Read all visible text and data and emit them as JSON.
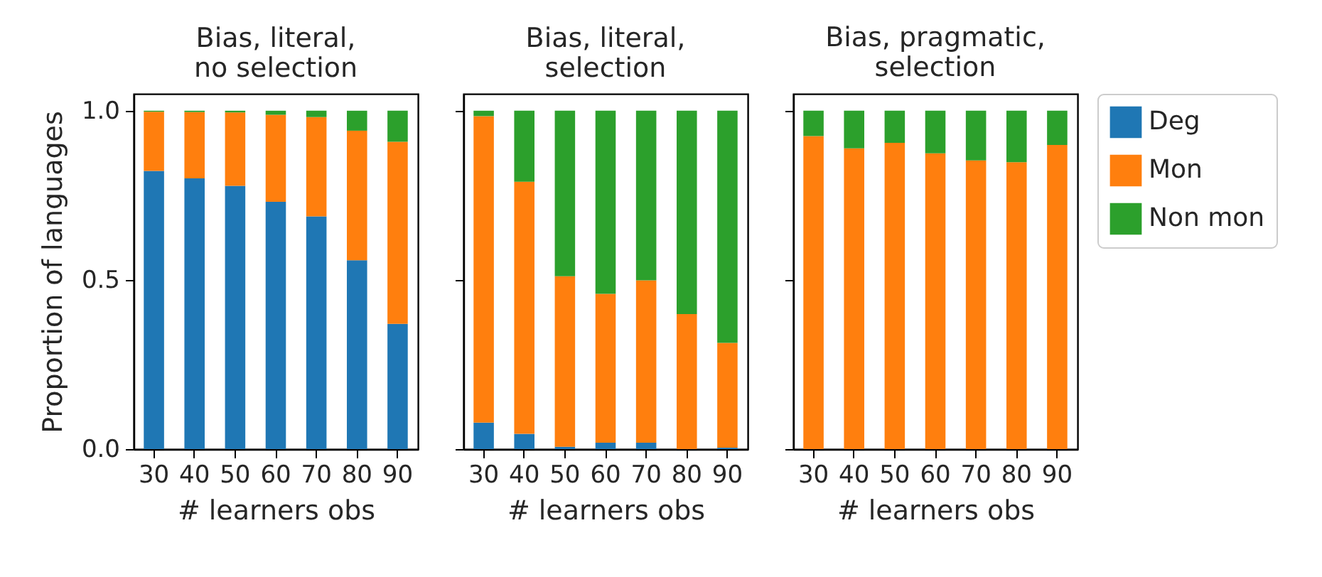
{
  "chart_data": [
    {
      "type": "bar",
      "stacked": true,
      "title": "Bias, literal,\nno selection",
      "xlabel": "# learners obs",
      "ylabel": "Proportion of languages",
      "categories": [
        "30",
        "40",
        "50",
        "60",
        "70",
        "80",
        "90"
      ],
      "ylim": [
        0,
        1.05
      ],
      "yticks": [
        {
          "value": 0,
          "label": "0.0"
        },
        0.5,
        {
          "value": 1,
          "label": "1.0"
        }
      ],
      "legend": false,
      "series": [
        {
          "color": "#1f77b4",
          "values": [
            0.822,
            0.8,
            0.778,
            0.731,
            0.688,
            0.558,
            0.37
          ]
        },
        {
          "color": "#ff7f0e",
          "values": [
            0.175,
            0.196,
            0.217,
            0.257,
            0.293,
            0.383,
            0.538
          ]
        },
        {
          "color": "#2ca02c",
          "values": [
            0.003,
            0.004,
            0.005,
            0.012,
            0.019,
            0.059,
            0.092
          ]
        }
      ]
    },
    {
      "type": "bar",
      "stacked": true,
      "title": "Bias, literal,\nselection",
      "xlabel": "# learners obs",
      "categories": [
        "30",
        "40",
        "50",
        "60",
        "70",
        "80",
        "90"
      ],
      "ylim": [
        0,
        1.05
      ],
      "yticks": [
        0,
        0.5,
        1
      ],
      "tick_labels": "x",
      "legend": false,
      "series": [
        {
          "color": "#1f77b4",
          "values": [
            0.078,
            0.045,
            0.007,
            0.019,
            0.019,
            0,
            0.004
          ]
        },
        {
          "color": "#ff7f0e",
          "values": [
            0.906,
            0.745,
            0.504,
            0.44,
            0.48,
            0.399,
            0.31
          ]
        },
        {
          "color": "#2ca02c",
          "values": [
            0.016,
            0.21,
            0.489,
            0.541,
            0.501,
            0.601,
            0.686
          ]
        }
      ]
    },
    {
      "type": "bar",
      "stacked": true,
      "title": "Bias, pragmatic,\nselection",
      "xlabel": "# learners obs",
      "categories": [
        "30",
        "40",
        "50",
        "60",
        "70",
        "80",
        "90"
      ],
      "ylim": [
        0,
        1.05
      ],
      "yticks": [
        0,
        0.5,
        1
      ],
      "tick_labels": "x",
      "legend": "right",
      "series": [
        {
          "name": "Deg",
          "color": "#1f77b4",
          "values": [
            0,
            0,
            0,
            0,
            0,
            0,
            0
          ]
        },
        {
          "name": "Mon",
          "color": "#ff7f0e",
          "values": [
            0.925,
            0.889,
            0.905,
            0.874,
            0.853,
            0.848,
            0.899
          ]
        },
        {
          "name": "Non mon",
          "color": "#2ca02c",
          "values": [
            0.075,
            0.111,
            0.095,
            0.126,
            0.147,
            0.152,
            0.101
          ]
        }
      ]
    }
  ]
}
